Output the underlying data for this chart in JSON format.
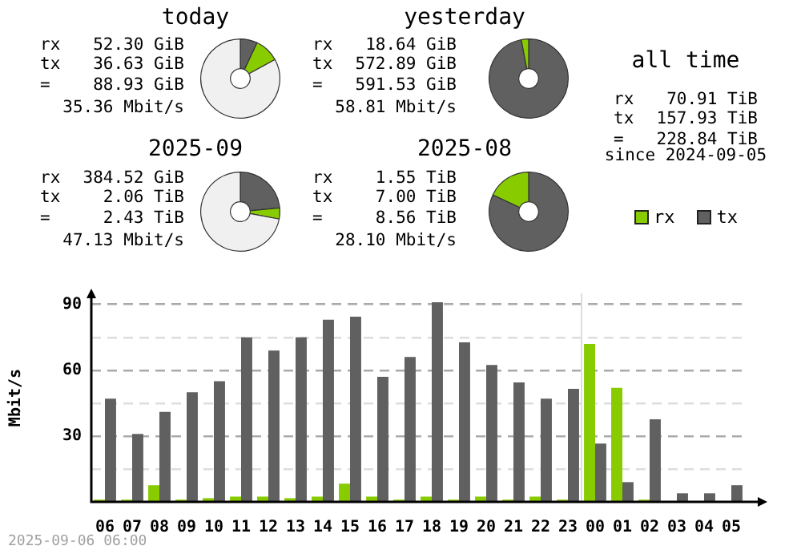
{
  "chart_data": [
    {
      "type": "donut",
      "title": "today",
      "categories": [
        null,
        null,
        null
      ],
      "values": [
        7,
        10,
        83
      ],
      "colors": [
        "#606060",
        "#88cc00",
        "#f0f0f0"
      ],
      "annotations": [
        "rx",
        "52.30 GiB",
        "tx",
        "36.63 GiB",
        "=",
        "88.93 GiB",
        "35.36 Mbit/s"
      ]
    },
    {
      "type": "donut",
      "title": "yesterday",
      "categories": [
        null,
        null
      ],
      "values": [
        97,
        3
      ],
      "colors": [
        "#606060",
        "#88cc00"
      ],
      "annotations": [
        "rx",
        "18.64 GiB",
        "tx",
        "572.89 GiB",
        "=",
        "591.53 GiB",
        "58.81 Mbit/s"
      ]
    },
    {
      "type": "donut",
      "title": "2025-09",
      "categories": [
        null,
        null,
        null
      ],
      "values": [
        23.5,
        4.5,
        72
      ],
      "colors": [
        "#606060",
        "#88cc00",
        "#f0f0f0"
      ],
      "annotations": [
        "rx",
        "384.52 GiB",
        "tx",
        "2.06 TiB",
        "=",
        "2.43 TiB",
        "47.13 Mbit/s"
      ]
    },
    {
      "type": "donut",
      "title": "2025-08",
      "categories": [
        null,
        null
      ],
      "values": [
        82,
        18
      ],
      "colors": [
        "#606060",
        "#88cc00"
      ],
      "annotations": [
        "rx",
        "1.55 TiB",
        "tx",
        "7.00 TiB",
        "=",
        "8.56 TiB",
        "28.10 Mbit/s"
      ]
    },
    {
      "type": "other",
      "title": "all time",
      "annotations": [
        "rx",
        "70.91 TiB",
        "tx",
        "157.93 TiB",
        "=",
        "228.84 TiB",
        "since 2024-09-05"
      ]
    },
    {
      "type": "bar",
      "ylabel": "Mbit/s",
      "categories": [
        "06",
        "07",
        "08",
        "09",
        "10",
        "11",
        "12",
        "13",
        "14",
        "15",
        "16",
        "17",
        "18",
        "19",
        "20",
        "21",
        "22",
        "23",
        "00",
        "01",
        "02",
        "03",
        "04",
        "05"
      ],
      "series": [
        {
          "name": "rx",
          "color": "#88cc00",
          "values": [
            1,
            1,
            7.6,
            1,
            1.7,
            2.4,
            2.4,
            1.7,
            2.4,
            8.3,
            2.4,
            1,
            2.4,
            1,
            2.4,
            1,
            2.4,
            1,
            72,
            52,
            1,
            0,
            0,
            0
          ]
        },
        {
          "name": "tx",
          "color": "#606060",
          "values": [
            47,
            31,
            41,
            50,
            55,
            75,
            69,
            75,
            83,
            84.4,
            57,
            66,
            91,
            72.7,
            62.4,
            54.4,
            47,
            51.5,
            26.6,
            9,
            37.6,
            3.9,
            3.9,
            7.6
          ]
        }
      ],
      "ylim": [
        0,
        95
      ],
      "yticks": [
        {
          "value": 15,
          "label": null
        },
        30,
        {
          "value": 45,
          "label": null
        },
        60,
        {
          "value": 75,
          "label": null
        },
        90
      ],
      "grid": "y",
      "legend": "top right",
      "ref_lines": [
        {
          "axis": "x",
          "value": "00",
          "color": "#dddddd"
        }
      ],
      "annotations": [
        "2025-09-06 06:00"
      ]
    }
  ]
}
